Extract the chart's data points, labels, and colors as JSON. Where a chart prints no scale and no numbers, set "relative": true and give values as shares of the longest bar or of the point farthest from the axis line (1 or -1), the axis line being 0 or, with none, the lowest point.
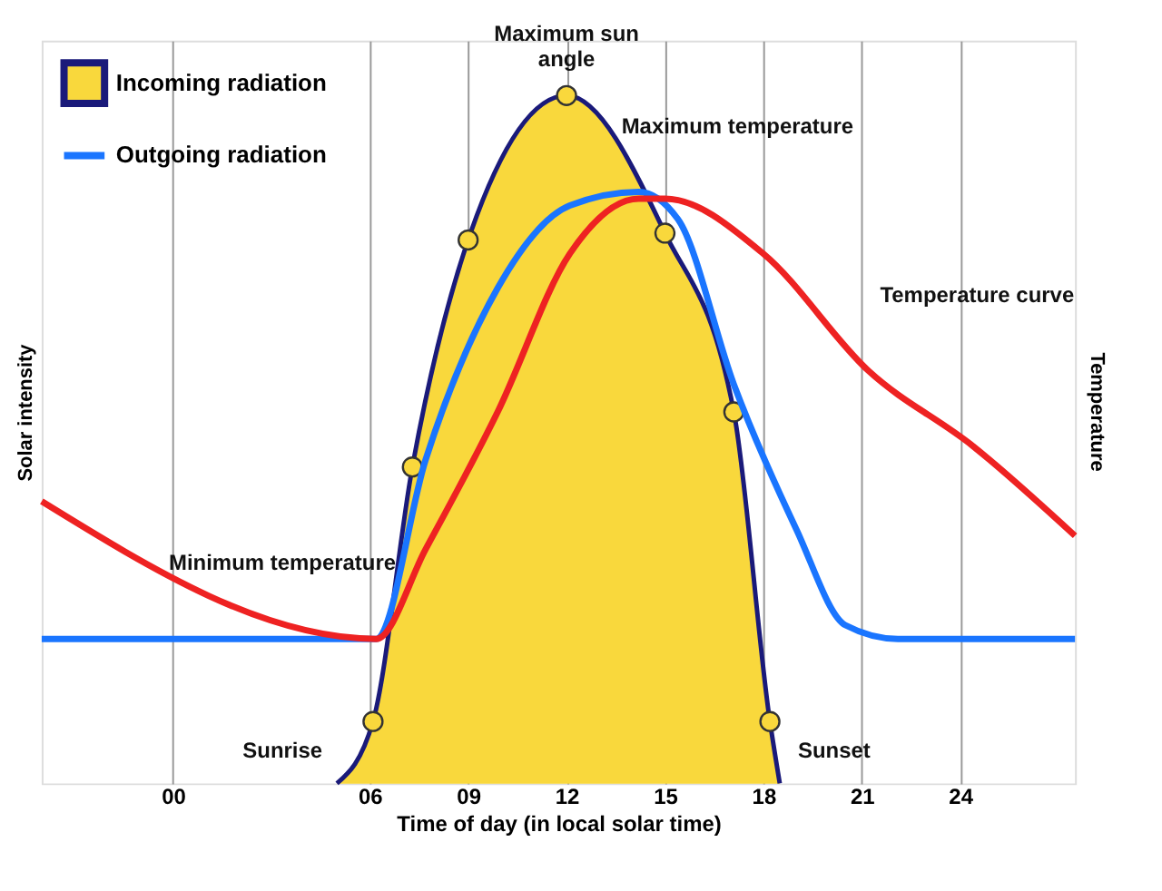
{
  "chart_data": {
    "type": "area",
    "relative": true,
    "xlabel": "Time of day (in local solar time)",
    "ylabel": "Solar intensity",
    "y2label": "Temperature",
    "xlim": [
      -4,
      27.5
    ],
    "xticks": [
      {
        "value": 0,
        "label": "00"
      },
      {
        "value": 6,
        "label": "06"
      },
      {
        "value": 9,
        "label": "09"
      },
      {
        "value": 12,
        "label": "12"
      },
      {
        "value": 15,
        "label": "15"
      },
      {
        "value": 18,
        "label": "18"
      },
      {
        "value": 21,
        "label": "21"
      },
      {
        "value": 24,
        "label": "24"
      }
    ],
    "grid": "x",
    "legend": "top left",
    "series": [
      {
        "name": "Incoming radiation",
        "marker": "circle",
        "color": "#f9d83c",
        "x": [
          5.0,
          6.1,
          7.3,
          9,
          12,
          15,
          17.1,
          18.2,
          18.5
        ],
        "values": [
          0,
          0.09,
          0.46,
          0.79,
          1,
          0.8,
          0.54,
          0.09,
          0
        ]
      },
      {
        "name": "Outgoing radiation",
        "type": "line",
        "color": "#1a75ff",
        "x": [
          -4,
          6.2,
          7.7,
          9.9,
          12.1,
          14.2,
          15.4,
          17.1,
          19.0,
          20.5,
          22.1,
          27.5
        ],
        "values": [
          0.21,
          0.21,
          0.47,
          0.72,
          0.84,
          0.86,
          0.82,
          0.58,
          0.37,
          0.23,
          0.21,
          0.21
        ]
      },
      {
        "type": "line",
        "color": "#ee2222",
        "x": [
          -4,
          6.2,
          7.7,
          9.9,
          12.1,
          14.2,
          15,
          18,
          21.2,
          24.4,
          27.5
        ],
        "values": [
          0.41,
          0.21,
          0.34,
          0.54,
          0.77,
          0.85,
          0.85,
          0.77,
          0.6,
          0.49,
          0.36
        ]
      }
    ],
    "annotations": [
      {
        "text": "Maximum sun angle",
        "x": 12,
        "y": 1
      },
      {
        "text": "Maximum temperature",
        "x": 15,
        "y": 0.85
      },
      {
        "text": "Temperature curve",
        "x": 21.2,
        "y": 0.6
      },
      {
        "text": "Minimum temperature",
        "x": 6.1,
        "y": 0.21
      },
      {
        "text": "Sunrise",
        "x": 5.0,
        "y": 0
      },
      {
        "text": "Sunset",
        "x": 18.5,
        "y": 0
      }
    ]
  }
}
